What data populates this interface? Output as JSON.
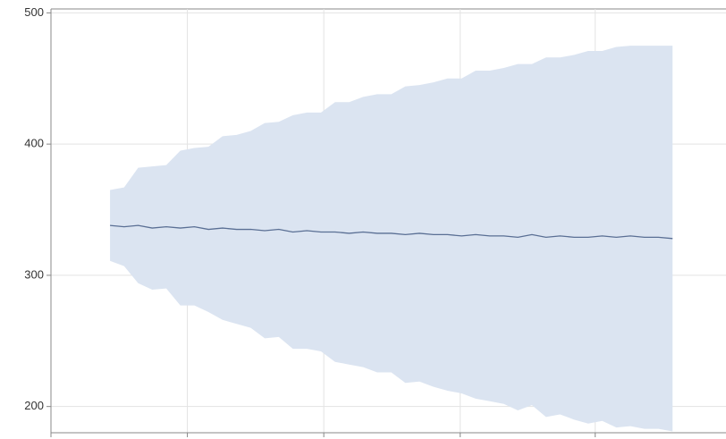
{
  "chart_data": {
    "type": "band-line",
    "x": [
      0,
      1,
      2,
      3,
      4,
      5,
      6,
      7,
      8,
      9,
      10,
      11,
      12,
      13,
      14,
      15,
      16,
      17,
      18,
      19,
      20,
      21,
      22,
      23,
      24,
      25,
      26,
      27,
      28,
      29,
      30,
      31,
      32,
      33,
      34,
      35,
      36,
      37,
      38,
      39,
      40
    ],
    "values": [
      338,
      337,
      338,
      336,
      337,
      336,
      337,
      335,
      336,
      335,
      335,
      334,
      335,
      333,
      334,
      333,
      333,
      332,
      333,
      332,
      332,
      331,
      332,
      331,
      331,
      330,
      331,
      330,
      330,
      329,
      331,
      329,
      330,
      329,
      329,
      330,
      329,
      330,
      329,
      329,
      328
    ],
    "upper": [
      365,
      367,
      382,
      383,
      384,
      395,
      397,
      398,
      406,
      407,
      410,
      416,
      417,
      422,
      424,
      424,
      432,
      432,
      436,
      438,
      438,
      444,
      445,
      447,
      450,
      450,
      456,
      456,
      458,
      461,
      461,
      466,
      466,
      468,
      471,
      471,
      474,
      475,
      475,
      475,
      475
    ],
    "lower": [
      311,
      307,
      294,
      289,
      290,
      277,
      277,
      272,
      266,
      263,
      260,
      252,
      253,
      244,
      244,
      242,
      234,
      232,
      230,
      226,
      226,
      218,
      219,
      215,
      212,
      210,
      206,
      204,
      202,
      197,
      201,
      192,
      194,
      190,
      187,
      189,
      184,
      185,
      183,
      183,
      181
    ],
    "color": "#5a6f94",
    "band_color": "#dbe4f1",
    "xlim": [
      -4.2,
      43.8
    ],
    "xticks": [
      5.5,
      15.2,
      24.9,
      34.5
    ],
    "ylim": [
      180,
      503
    ],
    "yticks": [
      200,
      300,
      400,
      500
    ],
    "grid": true
  }
}
